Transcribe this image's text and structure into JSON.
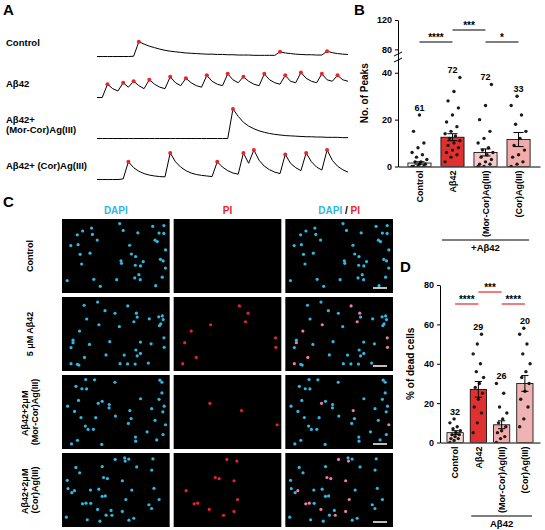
{
  "chart_data": [
    {
      "type": "line",
      "panel": "A",
      "x": [
        0,
        1,
        2,
        3,
        4,
        5,
        6,
        7,
        8,
        9,
        10,
        11,
        12,
        13,
        14,
        15,
        16,
        17,
        18,
        19,
        20,
        21,
        22,
        23,
        24,
        25,
        26,
        27,
        28,
        29,
        30,
        31,
        32,
        33,
        34,
        35,
        36,
        37,
        38,
        39,
        40,
        41,
        42,
        43,
        44,
        45,
        46,
        47,
        48
      ],
      "xlim": [
        0,
        48
      ],
      "ylim": [
        -0.05,
        1.1
      ],
      "tick_labels": false,
      "color": "#000000",
      "marker": "circle",
      "series": [
        {
          "name": "Control",
          "values": [
            0,
            0,
            0,
            0,
            0,
            0,
            0,
            0.01,
            0.5,
            0.42,
            0.35,
            0.3,
            0.25,
            0.21,
            0.18,
            0.16,
            0.14,
            0.12,
            0.11,
            0.1,
            0.09,
            0.08,
            0.08,
            0.07,
            0.07,
            0.06,
            0.06,
            0.05,
            0.05,
            0.05,
            0.04,
            0.04,
            0.04,
            0.04,
            0.04,
            0.16,
            0.12,
            0.1,
            0.08,
            0.07,
            0.06,
            0.06,
            0.05,
            0.05,
            0.18,
            0.13,
            0.1,
            0.08,
            0.07
          ],
          "peaks": [
            8,
            35,
            44
          ]
        },
        {
          "name": "Aβ42",
          "values": [
            0,
            0,
            0.45,
            0.3,
            0.22,
            0.5,
            0.35,
            0.55,
            0.4,
            0.3,
            0.6,
            0.45,
            0.35,
            0.3,
            0.7,
            0.5,
            0.4,
            0.65,
            0.5,
            0.4,
            0.35,
            0.75,
            0.55,
            0.45,
            0.4,
            0.8,
            0.6,
            0.5,
            0.7,
            0.55,
            0.45,
            0.4,
            0.8,
            0.6,
            0.5,
            0.45,
            0.75,
            0.55,
            0.5,
            0.85,
            0.65,
            0.55,
            0.5,
            0.8,
            0.6,
            0.55,
            0.75,
            0.6,
            0.55
          ],
          "peaks": [
            2,
            5,
            7,
            10,
            14,
            17,
            21,
            25,
            28,
            32,
            36,
            39,
            43,
            46
          ]
        },
        {
          "name": "Aβ42+ (Mor-Cor)Ag(III)",
          "values": [
            0,
            0,
            0,
            0,
            0,
            0,
            0,
            0,
            0,
            0,
            0,
            0,
            0,
            0,
            0,
            0,
            0,
            0,
            0,
            0,
            0,
            0,
            0,
            0,
            0,
            0,
            1.0,
            0.75,
            0.55,
            0.42,
            0.33,
            0.26,
            0.21,
            0.17,
            0.14,
            0.12,
            0.1,
            0.09,
            0.08,
            0.07,
            0.06,
            0.06,
            0.05,
            0.05,
            0.04,
            0.04,
            0.04,
            0.03,
            0.03
          ],
          "peaks": [
            26
          ]
        },
        {
          "name": "Aβ42+ (Cor)Ag(III)",
          "values": [
            0,
            0,
            0,
            0,
            0,
            0.02,
            0.6,
            0.4,
            0.28,
            0.2,
            0.15,
            0.12,
            0.1,
            0.09,
            0.9,
            0.6,
            0.42,
            0.3,
            0.22,
            0.17,
            0.14,
            0.12,
            0.1,
            0.6,
            0.42,
            0.3,
            0.22,
            0.18,
            0.9,
            0.55,
            1.0,
            0.65,
            0.45,
            0.33,
            0.25,
            0.2,
            0.85,
            0.55,
            0.4,
            0.3,
            0.9,
            0.6,
            0.42,
            0.32,
            1.0,
            0.65,
            0.45,
            0.33,
            0.25
          ],
          "peaks": [
            6,
            14,
            23,
            28,
            30,
            36,
            40,
            44
          ]
        }
      ]
    },
    {
      "type": "bar",
      "panel": "B",
      "categories": [
        "Control",
        "Aβ42",
        "(Mor-Cor)Ag(III)",
        "(Cor)Ag(III)"
      ],
      "values": [
        1.5,
        12.5,
        6,
        11.5
      ],
      "errors": [
        0.5,
        1.5,
        1.5,
        3
      ],
      "n": [
        61,
        72,
        72,
        33
      ],
      "points": [
        [
          0,
          0,
          0,
          0,
          1,
          1,
          2,
          2,
          3,
          4,
          5,
          6,
          8,
          10,
          15,
          22
        ],
        [
          2,
          4,
          5,
          6,
          7,
          8,
          9,
          10,
          11,
          12,
          13,
          14,
          15,
          17,
          19,
          22,
          25,
          28,
          32,
          38
        ],
        [
          0,
          0,
          1,
          1,
          2,
          3,
          4,
          5,
          6,
          7,
          8,
          10,
          12,
          15,
          20,
          26,
          35
        ],
        [
          0,
          1,
          2,
          4,
          5,
          7,
          9,
          12,
          15,
          18,
          22,
          26,
          30
        ]
      ],
      "colors": [
        "#f2f2f2",
        "#e0302f",
        "#f8c9c9",
        "#f2aaaa"
      ],
      "marker": "circle",
      "ylabel": "No. of Peaks",
      "ylim": [
        0,
        120
      ],
      "yticks": [
        0,
        20,
        40,
        80,
        120
      ],
      "ybreak": [
        45,
        75
      ],
      "group_label": "+Aβ42",
      "group": [
        1,
        3
      ],
      "comparisons": [
        {
          "pair": [
            0,
            1
          ],
          "label": "****"
        },
        {
          "pair": [
            1,
            2
          ],
          "label": "***"
        },
        {
          "pair": [
            2,
            3
          ],
          "label": "*"
        }
      ]
    },
    {
      "type": "image_grid",
      "panel": "C",
      "columns": [
        "DAPI",
        "PI",
        "DAPI / PI"
      ],
      "rows": [
        "Control",
        "5 μM Aβ42",
        "Aβ42+2μM (Mor-Cor)Ag(III)",
        "Aβ42+2μM (Cor)Ag(III)"
      ]
    },
    {
      "type": "bar",
      "panel": "D",
      "categories": [
        "Control",
        "Aβ42",
        "(Mor-Cor)Ag(III)",
        "(Cor)Ag(III)"
      ],
      "values": [
        5,
        27,
        9,
        30
      ],
      "errors": [
        1,
        4,
        2,
        4
      ],
      "n": [
        32,
        29,
        26,
        20
      ],
      "points": [
        [
          0,
          1,
          2,
          2,
          3,
          4,
          4,
          5,
          6,
          7,
          8,
          10,
          12
        ],
        [
          5,
          10,
          15,
          18,
          22,
          25,
          28,
          30,
          33,
          36,
          40,
          45,
          50,
          55
        ],
        [
          0,
          2,
          3,
          5,
          6,
          8,
          10,
          12,
          15,
          18,
          25,
          30
        ],
        [
          8,
          12,
          18,
          22,
          26,
          30,
          33,
          36,
          40,
          45,
          50,
          55,
          58
        ]
      ],
      "colors": [
        "#f6d5d5",
        "#e0302f",
        "#f2aaaa",
        "#f0b3b3"
      ],
      "marker": "circle",
      "ylabel": "% of dead cells",
      "ylim": [
        0,
        80
      ],
      "yticks": [
        0,
        20,
        40,
        60,
        80
      ],
      "group_label": "Aβ42",
      "group": [
        1,
        3
      ],
      "comparisons": [
        {
          "pair": [
            0,
            1
          ],
          "label": "****"
        },
        {
          "pair": [
            1,
            2
          ],
          "label": "***"
        },
        {
          "pair": [
            2,
            3
          ],
          "label": "****"
        }
      ]
    }
  ]
}
